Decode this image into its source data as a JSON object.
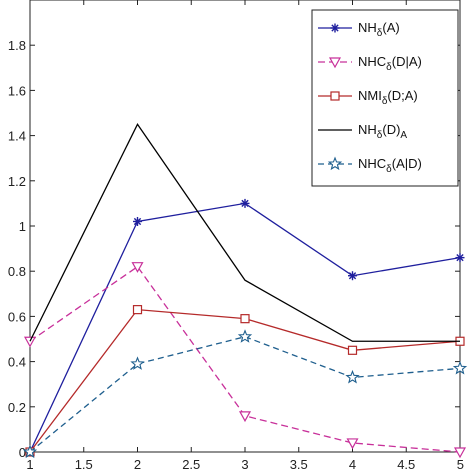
{
  "chart_data": {
    "type": "line",
    "x": [
      1,
      2,
      3,
      4,
      5
    ],
    "xlim": [
      1,
      5
    ],
    "ylim": [
      0,
      2
    ],
    "xticks": [
      1,
      1.5,
      2,
      2.5,
      3,
      3.5,
      4,
      4.5,
      5
    ],
    "xtick_labels": [
      "1",
      "1.5",
      "2",
      "2.5",
      "3",
      "3.5",
      "4",
      "4.5",
      "5"
    ],
    "yticks": [
      0,
      0.2,
      0.4,
      0.6,
      0.8,
      1.0,
      1.2,
      1.4,
      1.6,
      1.8
    ],
    "ytick_labels": [
      "0",
      "0.2",
      "0.4",
      "0.6",
      "0.8",
      "1",
      "1.2",
      "1.4",
      "1.6",
      "1.8"
    ],
    "grid": false,
    "legend_position": "top-right",
    "series": [
      {
        "key": "nh_a",
        "name": "NHδ(A)",
        "base": "NH",
        "sub": "δ",
        "post": "(A)",
        "post_sub": "",
        "color": "#1f1f9e",
        "dash": "",
        "marker": "asterisk",
        "values": [
          0.0,
          1.02,
          1.1,
          0.78,
          0.86
        ]
      },
      {
        "key": "nhc_da",
        "name": "NHCδ(D|A)",
        "base": "NHC",
        "sub": "δ",
        "post": "(D|A)",
        "post_sub": "",
        "color": "#c8309a",
        "dash": "7,4",
        "marker": "triangle-down",
        "values": [
          0.49,
          0.82,
          0.16,
          0.04,
          0.0
        ]
      },
      {
        "key": "nmi_da",
        "name": "NMIδ(D;A)",
        "base": "NMI",
        "sub": "δ",
        "post": "(D;A)",
        "post_sub": "",
        "color": "#b52a2a",
        "dash": "",
        "marker": "square",
        "values": [
          0.0,
          0.63,
          0.59,
          0.45,
          0.49
        ]
      },
      {
        "key": "nh_d_a",
        "name": "NHδ(D)A",
        "base": "NH",
        "sub": "δ",
        "post": "(D)",
        "post_sub": "A",
        "color": "#000000",
        "dash": "",
        "marker": "none",
        "values": [
          0.49,
          1.45,
          0.76,
          0.49,
          0.49
        ]
      },
      {
        "key": "nhc_ad",
        "name": "NHCδ(A|D)",
        "base": "NHC",
        "sub": "δ",
        "post": "(A|D)",
        "post_sub": "",
        "color": "#1f5f8e",
        "dash": "6,4",
        "marker": "star",
        "values": [
          0.0,
          0.39,
          0.51,
          0.33,
          0.37
        ]
      }
    ]
  }
}
